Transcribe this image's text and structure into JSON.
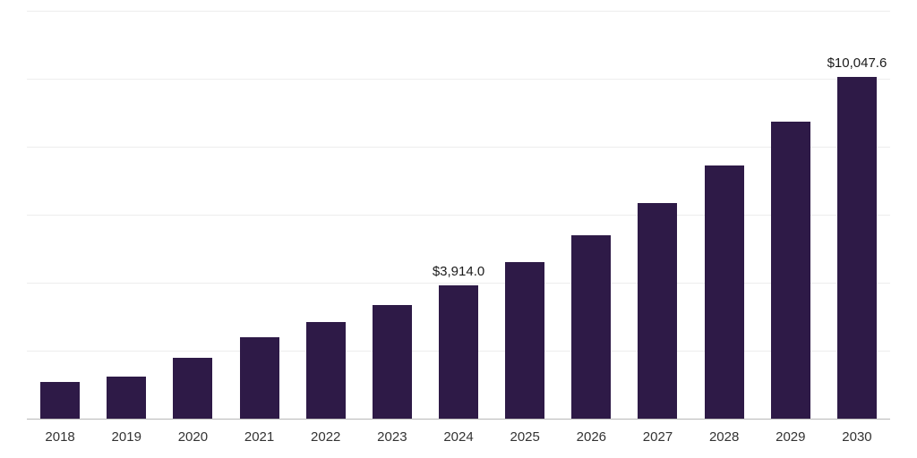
{
  "chart_data": {
    "type": "bar",
    "title": "",
    "xlabel": "",
    "ylabel": "",
    "categories": [
      "2018",
      "2019",
      "2020",
      "2021",
      "2022",
      "2023",
      "2024",
      "2025",
      "2026",
      "2027",
      "2028",
      "2029",
      "2030"
    ],
    "values": [
      1080,
      1240,
      1800,
      2400,
      2840,
      3330,
      3914.0,
      4600,
      5400,
      6350,
      7450,
      8730,
      10047.6
    ],
    "value_labels": {
      "6": "$3,914.0",
      "12": "$10,047.6"
    },
    "ylim": [
      0,
      12000
    ],
    "grid_step": 2000,
    "grid_on": true,
    "legend": "none",
    "colors": {
      "bar": "#2e1a47",
      "gridline": "#ededed",
      "axis_line": "#b9b9b9",
      "tick_label": "#333333",
      "value_label": "#1a1a1a",
      "background": "#ffffff"
    }
  }
}
